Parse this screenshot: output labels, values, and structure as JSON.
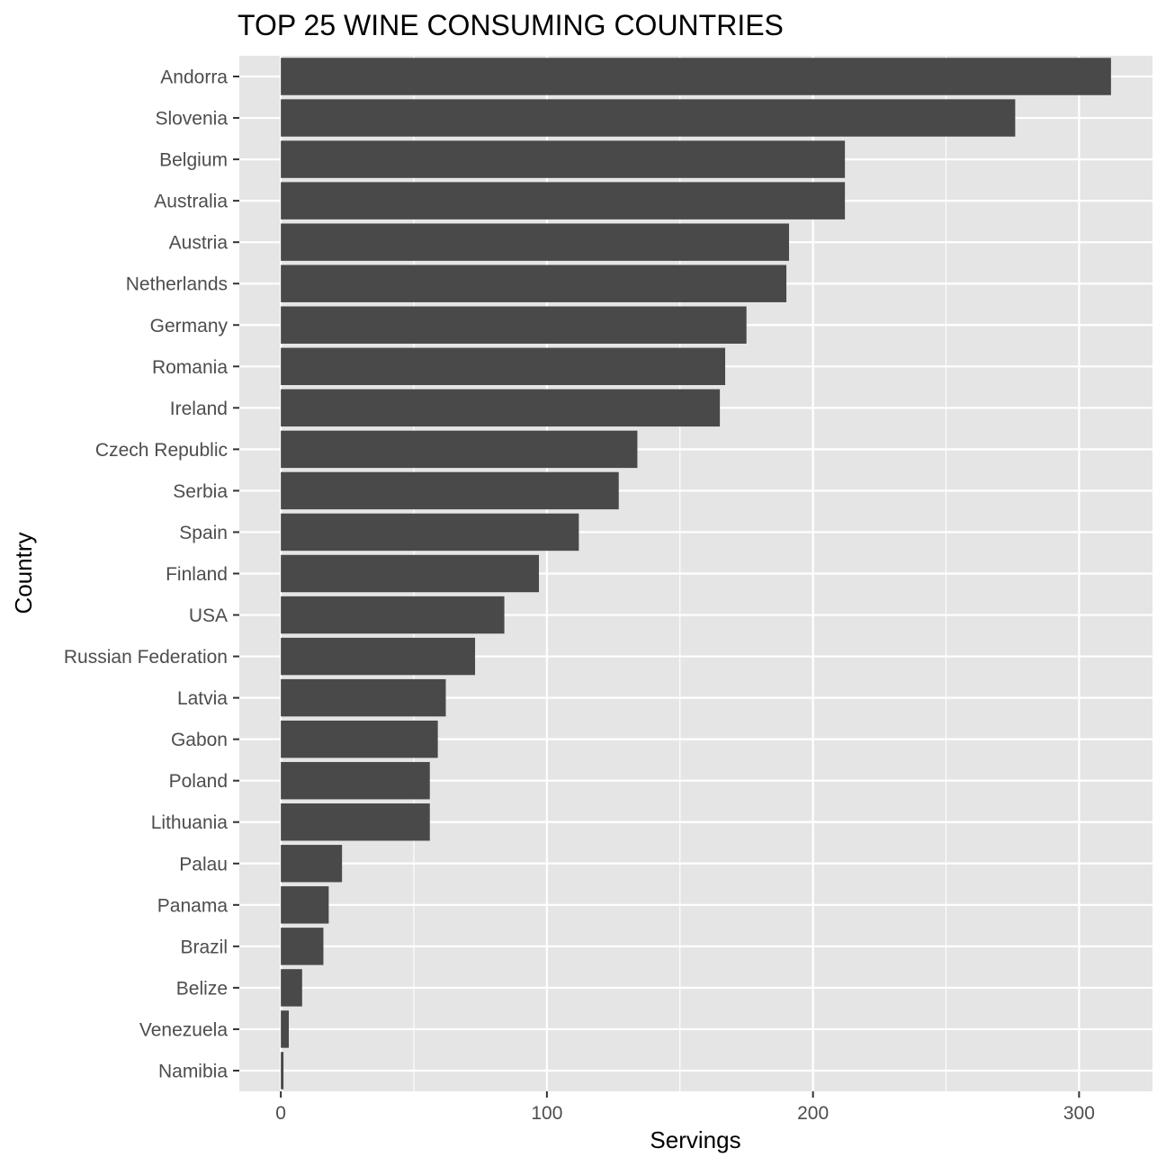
{
  "chart_data": {
    "type": "bar",
    "orientation": "horizontal",
    "title": "TOP 25 WINE CONSUMING COUNTRIES",
    "xlabel": "Servings",
    "ylabel": "Country",
    "categories": [
      "Andorra",
      "Slovenia",
      "Belgium",
      "Australia",
      "Austria",
      "Netherlands",
      "Germany",
      "Romania",
      "Ireland",
      "Czech Republic",
      "Serbia",
      "Spain",
      "Finland",
      "USA",
      "Russian Federation",
      "Latvia",
      "Gabon",
      "Poland",
      "Lithuania",
      "Palau",
      "Panama",
      "Brazil",
      "Belize",
      "Venezuela",
      "Namibia"
    ],
    "values": [
      312,
      276,
      212,
      212,
      191,
      190,
      175,
      167,
      165,
      134,
      127,
      112,
      97,
      84,
      73,
      62,
      59,
      56,
      56,
      23,
      18,
      16,
      8,
      3,
      1
    ],
    "xlim": [
      -15.6,
      327.6
    ],
    "xticks": [
      0,
      100,
      200,
      300
    ],
    "grid": true,
    "legend": "none",
    "colors": {
      "bar": "#494949",
      "panel": "#e5e5e5",
      "grid": "#ffffff",
      "tick": "#333333"
    }
  }
}
